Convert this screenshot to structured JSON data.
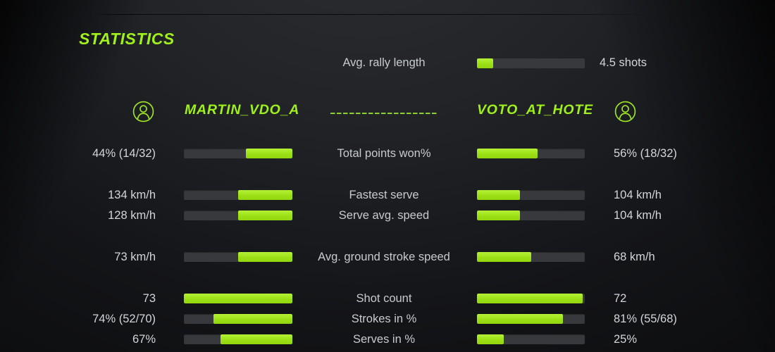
{
  "title": "STATISTICS",
  "colors": {
    "accent": "#9ff01c",
    "bar_track": "#38393c",
    "bar_fill": "#a3e620",
    "background_dark": "#0a0b0c",
    "background_light": "#2c2e32",
    "label_text": "#c7cbce",
    "value_text": "#d3d6d9"
  },
  "rally": {
    "label": "Avg. rally length",
    "value": "4.5 shots",
    "fill_pct": 15
  },
  "players": {
    "left": {
      "name": "MARTIN_VDO_A",
      "icon": "person-circle-icon"
    },
    "right": {
      "name": "VOTO_AT_HOTE",
      "icon": "person-circle-icon"
    }
  },
  "rows": [
    {
      "label": "Total points won%",
      "left_value": "44% (14/32)",
      "left_fill_pct": 43,
      "right_value": "56% (18/32)",
      "right_fill_pct": 56
    },
    {
      "label": "Fastest serve",
      "left_value": "134 km/h",
      "left_fill_pct": 50,
      "right_value": "104 km/h",
      "right_fill_pct": 40
    },
    {
      "label": "Serve avg. speed",
      "left_value": "128 km/h",
      "left_fill_pct": 50,
      "right_value": "104 km/h",
      "right_fill_pct": 40
    },
    {
      "label": "Avg. ground stroke speed",
      "left_value": "73 km/h",
      "left_fill_pct": 50,
      "right_value": "68 km/h",
      "right_fill_pct": 50
    },
    {
      "label": "Shot count",
      "left_value": "73",
      "left_fill_pct": 100,
      "right_value": "72",
      "right_fill_pct": 98
    },
    {
      "label": "Strokes in %",
      "left_value": "74% (52/70)",
      "left_fill_pct": 73,
      "right_value": "81% (55/68)",
      "right_fill_pct": 80
    },
    {
      "label": "Serves in %",
      "left_value": "67%",
      "left_fill_pct": 66,
      "right_value": "25%",
      "right_fill_pct": 25
    }
  ]
}
